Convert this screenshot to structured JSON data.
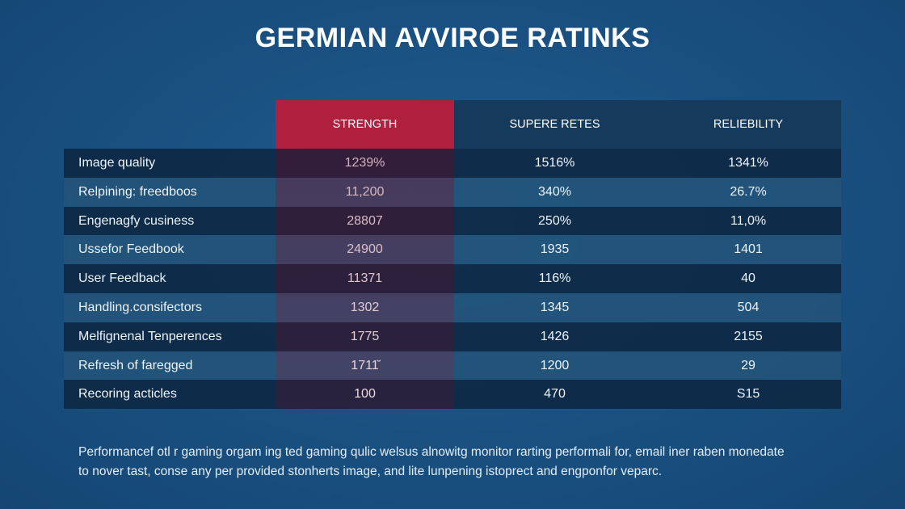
{
  "title": "GERMIAN AVVIROE RATINKS",
  "columns": [
    "STRENGTH",
    "SUPERE RETES",
    "RELIEBILITY"
  ],
  "rows": [
    {
      "label": "Image quality",
      "values": [
        "1239%",
        "1516%",
        "1341%"
      ]
    },
    {
      "label": "Relpining: freedboos",
      "values": [
        "11,200",
        "340%",
        "26.7%"
      ]
    },
    {
      "label": "Engenagfy cusiness",
      "values": [
        "28807",
        "250%",
        "11,0%"
      ]
    },
    {
      "label": "Ussefor Feedbook",
      "values": [
        "24900",
        "1935",
        "1401"
      ]
    },
    {
      "label": "User Feedback",
      "values": [
        "11371",
        "116%",
        "40"
      ]
    },
    {
      "label": "Handling.consifectors",
      "values": [
        "1302",
        "1345",
        "504"
      ]
    },
    {
      "label": "Melfignenal Tenperences",
      "values": [
        "1775",
        "1426",
        "2155"
      ]
    },
    {
      "label": "Refresh of faregged",
      "values": [
        "1711̆̆",
        "1200",
        "29"
      ]
    },
    {
      "label": "Recoring acticles",
      "values": [
        "100",
        "470",
        "S15"
      ]
    }
  ],
  "footer": {
    "line1": "Performancef otl r gaming orgam ing ted gaming qulic welsus alnowitg monitor rarting performali for, email iner raben monedate",
    "line2": "to nover tast, conse any per provided stonherts image, and lite lunpening istoprect and  engponfor veparc."
  },
  "colors": {
    "background": "#1a5283",
    "accent_column": "#b0203e",
    "row_dark": "#0d2640",
    "row_light": "#245478"
  }
}
